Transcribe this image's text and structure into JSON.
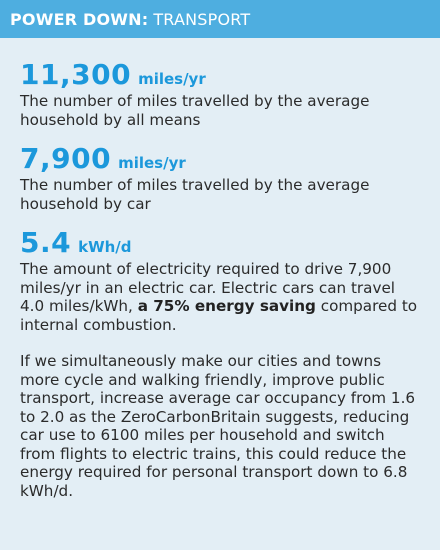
{
  "header": {
    "title_strong": "POWER DOWN:",
    "title_light": "TRANSPORT"
  },
  "stats": [
    {
      "value": "11,300",
      "unit": "miles/yr",
      "description": "The number of miles travelled by the average household by all means"
    },
    {
      "value": "7,900",
      "unit": "miles/yr",
      "description": "The number of miles travelled by the average household by car"
    },
    {
      "value": "5.4",
      "unit": "kWh/d",
      "description_before": "The amount of electricity required to drive 7,900 miles/yr in an electric car. Electric cars can travel 4.0 miles/kWh,",
      "description_bold": "a 75% energy saving",
      "description_after": "compared to internal combustion."
    }
  ],
  "paragraph": "If we simultaneously make our cities and towns more cycle and walking friendly, improve public transport, increase average car occupancy from 1.6 to 2.0 as the ZeroCarbonBritain suggests, reducing car use to 6100 miles per household and switch from flights to electric trains, this could reduce the energy required for personal transport down to 6.8 kWh/d.",
  "colors": {
    "header_bg": "#4eaee0",
    "panel_bg": "#e3eef5",
    "accent": "#1c98db",
    "text": "#2b2b2b"
  }
}
